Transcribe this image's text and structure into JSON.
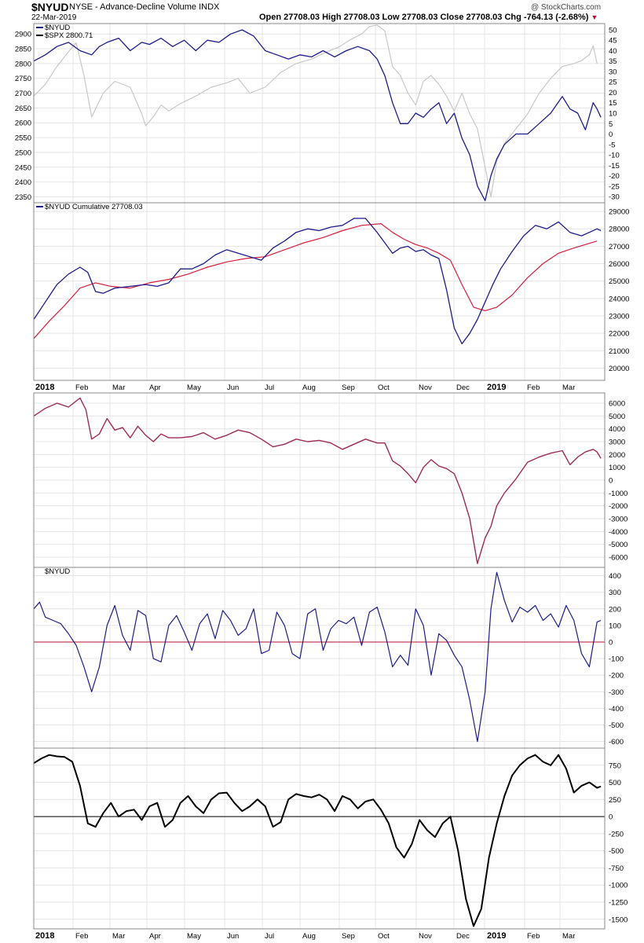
{
  "header": {
    "symbol": "$NYUD",
    "description": "NYSE - Advance-Decline Volume  INDX",
    "date": "22-Mar-2019",
    "quote": "Open 27708.03   High 27708.03   Low 27708.03   Close 27708.03   Chg -764.13 (-2.68%)",
    "chg_marker": "▼",
    "brand": "@ StockCharts.com"
  },
  "colors": {
    "nyud": "#1c1c8a",
    "spx": "#c8c8c8",
    "ma": "#d81e3c",
    "line3": "#9e2a5a",
    "zero": "#b01030",
    "osc": "#000000",
    "grid": "#e4e4e4",
    "border": "#888888"
  },
  "chart_data": [
    {
      "type": "line",
      "legend": [
        {
          "name": "$NYUD",
          "color": "#1c1c8a"
        },
        {
          "name": "$SPX 2800.71",
          "color": "#c8c8c8"
        }
      ],
      "x_ticks": [
        "2018",
        "Feb",
        "Mar",
        "Apr",
        "May",
        "Jun",
        "Jul",
        "Aug",
        "Sep",
        "Oct",
        "Nov",
        "Dec",
        "2019",
        "Feb",
        "Mar"
      ],
      "y_left_ticks": [
        2350,
        2400,
        2450,
        2500,
        2550,
        2600,
        2650,
        2700,
        2750,
        2800,
        2850,
        2900
      ],
      "y_left_range": [
        2330,
        2935
      ],
      "y_right_ticks": [
        -30,
        -25,
        -20,
        -15,
        -10,
        -5,
        0,
        5,
        10,
        15,
        20,
        25,
        30,
        35,
        40,
        45,
        50
      ],
      "y_right_range": [
        -33,
        53
      ],
      "x_range": [
        0,
        14.8
      ],
      "series": [
        {
          "name": "$SPX 2800.71",
          "axis": "left",
          "color": "#c8c8c8",
          "x": [
            0,
            0.3,
            0.6,
            0.9,
            1.1,
            1.3,
            1.5,
            1.8,
            2.1,
            2.5,
            2.8,
            2.9,
            3.1,
            3.3,
            3.5,
            3.8,
            4.2,
            4.6,
            5.0,
            5.3,
            5.6,
            6.0,
            6.4,
            6.8,
            7.2,
            7.6,
            7.9,
            8.2,
            8.5,
            8.7,
            8.9,
            9.1,
            9.3,
            9.5,
            9.7,
            9.9,
            10.1,
            10.3,
            10.5,
            10.7,
            10.9,
            11.1,
            11.3,
            11.5,
            11.7,
            11.85,
            12.0,
            12.2,
            12.5,
            12.8,
            13.1,
            13.4,
            13.7,
            14.0,
            14.2,
            14.4,
            14.5,
            14.6
          ],
          "y": [
            2690,
            2730,
            2790,
            2840,
            2870,
            2760,
            2620,
            2700,
            2740,
            2720,
            2630,
            2590,
            2620,
            2660,
            2640,
            2665,
            2690,
            2720,
            2735,
            2750,
            2700,
            2720,
            2770,
            2800,
            2815,
            2840,
            2855,
            2880,
            2900,
            2925,
            2930,
            2910,
            2790,
            2760,
            2700,
            2660,
            2740,
            2760,
            2730,
            2690,
            2640,
            2700,
            2630,
            2580,
            2450,
            2350,
            2470,
            2530,
            2580,
            2630,
            2700,
            2750,
            2790,
            2800,
            2810,
            2830,
            2860,
            2800
          ]
        },
        {
          "name": "$NYUD",
          "axis": "right",
          "color": "#1c1c8a",
          "x": [
            0,
            0.3,
            0.6,
            0.9,
            1.2,
            1.5,
            1.7,
            1.9,
            2.2,
            2.5,
            2.8,
            3.0,
            3.3,
            3.6,
            3.9,
            4.2,
            4.5,
            4.8,
            5.1,
            5.4,
            5.7,
            6.0,
            6.3,
            6.6,
            6.9,
            7.2,
            7.5,
            7.8,
            8.1,
            8.4,
            8.7,
            8.9,
            9.1,
            9.3,
            9.5,
            9.7,
            9.9,
            10.1,
            10.3,
            10.5,
            10.7,
            10.9,
            11.1,
            11.3,
            11.5,
            11.7,
            11.85,
            12.0,
            12.2,
            12.5,
            12.8,
            13.1,
            13.4,
            13.7,
            13.9,
            14.1,
            14.3,
            14.5,
            14.6,
            14.7
          ],
          "y": [
            35,
            38,
            42,
            44,
            40,
            38,
            42,
            44,
            46,
            40,
            44,
            43,
            46,
            42,
            45,
            40,
            45,
            44,
            48,
            50,
            47,
            40,
            38,
            36,
            38,
            37,
            40,
            37,
            40,
            42,
            40,
            36,
            28,
            15,
            5,
            5,
            10,
            8,
            12,
            15,
            5,
            10,
            -2,
            -10,
            -25,
            -32,
            -20,
            -12,
            -5,
            0,
            0,
            5,
            10,
            18,
            12,
            10,
            2,
            15,
            12,
            8
          ]
        }
      ]
    },
    {
      "type": "line",
      "legend": [
        {
          "name": "$NYUD Cumulative 27708.03",
          "color": "#1c1c8a"
        }
      ],
      "x_ticks": [
        "2018",
        "Feb",
        "Mar",
        "Apr",
        "May",
        "Jun",
        "Jul",
        "Aug",
        "Sep",
        "Oct",
        "Nov",
        "Dec",
        "2019",
        "Feb",
        "Mar"
      ],
      "y_ticks": [
        20000,
        21000,
        22000,
        23000,
        24000,
        25000,
        26000,
        27000,
        28000,
        29000
      ],
      "y_range": [
        19300,
        29500
      ],
      "x_range": [
        0,
        14.8
      ],
      "series": [
        {
          "name": "$NYUD Cumulative",
          "color": "#1c1c8a",
          "x": [
            0,
            0.3,
            0.6,
            0.9,
            1.2,
            1.4,
            1.6,
            1.8,
            2.1,
            2.5,
            2.9,
            3.2,
            3.5,
            3.8,
            4.1,
            4.4,
            4.7,
            5.0,
            5.3,
            5.6,
            5.9,
            6.2,
            6.5,
            6.8,
            7.1,
            7.4,
            7.7,
            8.0,
            8.3,
            8.6,
            8.9,
            9.1,
            9.3,
            9.5,
            9.7,
            9.9,
            10.1,
            10.3,
            10.5,
            10.7,
            10.9,
            11.1,
            11.3,
            11.5,
            11.7,
            11.9,
            12.1,
            12.4,
            12.7,
            13.0,
            13.3,
            13.6,
            13.9,
            14.2,
            14.4,
            14.6,
            14.7
          ],
          "y": [
            22800,
            23800,
            24800,
            25400,
            25800,
            25500,
            24400,
            24300,
            24600,
            24700,
            24800,
            24700,
            24900,
            25700,
            25700,
            26000,
            26500,
            26800,
            26600,
            26400,
            26200,
            26900,
            27300,
            27800,
            28000,
            27900,
            28100,
            28200,
            28600,
            28600,
            27800,
            27200,
            26600,
            26900,
            27000,
            26700,
            26800,
            26500,
            26300,
            24500,
            22300,
            21400,
            22000,
            22800,
            23800,
            24800,
            25700,
            26700,
            27600,
            28200,
            28000,
            28400,
            27800,
            27600,
            27800,
            28000,
            27900
          ]
        },
        {
          "name": "Moving Average",
          "color": "#d81e3c",
          "x": [
            0,
            0.4,
            0.8,
            1.2,
            1.6,
            2.0,
            2.5,
            3.0,
            3.5,
            4.0,
            4.5,
            5.0,
            5.5,
            6.0,
            6.5,
            7.0,
            7.5,
            8.0,
            8.5,
            9.0,
            9.3,
            9.6,
            9.9,
            10.2,
            10.5,
            10.8,
            11.1,
            11.4,
            11.7,
            12.0,
            12.4,
            12.8,
            13.2,
            13.6,
            14.0,
            14.3,
            14.6
          ],
          "y": [
            21700,
            22700,
            23600,
            24600,
            24900,
            24700,
            24600,
            24900,
            25100,
            25400,
            25800,
            26100,
            26300,
            26400,
            26800,
            27200,
            27500,
            27900,
            28200,
            28300,
            27800,
            27400,
            27100,
            26900,
            26600,
            26200,
            24800,
            23500,
            23300,
            23500,
            24200,
            25200,
            26000,
            26600,
            26900,
            27100,
            27300
          ]
        }
      ]
    },
    {
      "type": "line",
      "x_range": [
        0,
        14.8
      ],
      "y_ticks": [
        -6000,
        -5000,
        -4000,
        -3000,
        -2000,
        -1000,
        0,
        1000,
        2000,
        3000,
        4000,
        5000,
        6000
      ],
      "y_range": [
        -6800,
        6800
      ],
      "series": [
        {
          "name": "",
          "color": "#9e2a5a",
          "x": [
            0,
            0.3,
            0.6,
            0.9,
            1.2,
            1.35,
            1.5,
            1.7,
            1.9,
            2.1,
            2.3,
            2.5,
            2.7,
            2.9,
            3.1,
            3.3,
            3.5,
            3.8,
            4.1,
            4.4,
            4.7,
            5.0,
            5.3,
            5.6,
            5.9,
            6.2,
            6.5,
            6.8,
            7.1,
            7.4,
            7.7,
            8.0,
            8.3,
            8.6,
            8.9,
            9.1,
            9.3,
            9.5,
            9.7,
            9.9,
            10.1,
            10.3,
            10.5,
            10.7,
            10.9,
            11.1,
            11.3,
            11.5,
            11.7,
            11.85,
            12.0,
            12.2,
            12.5,
            12.8,
            13.1,
            13.4,
            13.7,
            13.9,
            14.1,
            14.3,
            14.5,
            14.6,
            14.7
          ],
          "y": [
            5000,
            5600,
            6000,
            5700,
            6400,
            5500,
            3200,
            3600,
            4800,
            3900,
            4100,
            3300,
            4200,
            3500,
            3000,
            3600,
            3300,
            3300,
            3400,
            3700,
            3200,
            3500,
            3900,
            3700,
            3200,
            2600,
            2800,
            3200,
            3000,
            3100,
            2900,
            2400,
            2800,
            3200,
            2900,
            2900,
            1500,
            1100,
            500,
            -200,
            1000,
            1600,
            1100,
            900,
            500,
            -1000,
            -3000,
            -6500,
            -4500,
            -3600,
            -2000,
            -1000,
            100,
            1400,
            1800,
            2100,
            2300,
            1200,
            1800,
            2200,
            2400,
            2200,
            1700
          ]
        }
      ]
    },
    {
      "type": "line",
      "legend": [
        {
          "name": "$NYUD",
          "color": "#1c1c8a"
        }
      ],
      "x_range": [
        0,
        14.8
      ],
      "y_ticks": [
        -600,
        -500,
        -400,
        -300,
        -200,
        -100,
        0,
        100,
        200,
        300,
        400
      ],
      "y_range": [
        -640,
        450
      ],
      "reference_line": 0,
      "series": [
        {
          "name": "$NYUD",
          "color": "#1c1c8a",
          "x": [
            0,
            0.15,
            0.3,
            0.5,
            0.7,
            0.9,
            1.1,
            1.3,
            1.5,
            1.7,
            1.9,
            2.1,
            2.3,
            2.5,
            2.7,
            2.9,
            3.1,
            3.3,
            3.5,
            3.7,
            3.9,
            4.1,
            4.3,
            4.5,
            4.7,
            4.9,
            5.1,
            5.3,
            5.5,
            5.7,
            5.9,
            6.1,
            6.3,
            6.5,
            6.7,
            6.9,
            7.1,
            7.3,
            7.5,
            7.7,
            7.9,
            8.1,
            8.3,
            8.5,
            8.7,
            8.9,
            9.1,
            9.3,
            9.5,
            9.7,
            9.9,
            10.1,
            10.3,
            10.5,
            10.7,
            10.9,
            11.1,
            11.3,
            11.5,
            11.7,
            11.85,
            12.0,
            12.2,
            12.4,
            12.6,
            12.8,
            13.0,
            13.2,
            13.4,
            13.6,
            13.8,
            14.0,
            14.2,
            14.4,
            14.6,
            14.7
          ],
          "y": [
            200,
            240,
            150,
            130,
            110,
            50,
            -20,
            -150,
            -300,
            -150,
            100,
            220,
            40,
            -50,
            190,
            160,
            -100,
            -120,
            100,
            160,
            60,
            -50,
            110,
            170,
            20,
            190,
            130,
            40,
            80,
            200,
            -70,
            -50,
            180,
            100,
            -70,
            -100,
            170,
            200,
            -50,
            80,
            130,
            110,
            150,
            -20,
            180,
            210,
            60,
            -150,
            -80,
            -140,
            200,
            100,
            -200,
            50,
            10,
            -80,
            -150,
            -350,
            -600,
            -300,
            200,
            420,
            250,
            120,
            210,
            180,
            220,
            130,
            170,
            90,
            220,
            130,
            -70,
            -150,
            120,
            130
          ]
        }
      ]
    },
    {
      "type": "line",
      "x_range": [
        0,
        14.8
      ],
      "x_ticks": [
        "2018",
        "Feb",
        "Mar",
        "Apr",
        "May",
        "Jun",
        "Jul",
        "Aug",
        "Sep",
        "Oct",
        "Nov",
        "Dec",
        "2019",
        "Feb",
        "Mar"
      ],
      "y_ticks": [
        -1500,
        -1250,
        -1000,
        -750,
        -500,
        -250,
        0,
        250,
        500,
        750
      ],
      "y_range": [
        -1640,
        1000
      ],
      "reference_line": 0,
      "series": [
        {
          "name": "",
          "color": "#000000",
          "x": [
            0,
            0.2,
            0.4,
            0.6,
            0.8,
            1.0,
            1.2,
            1.4,
            1.6,
            1.8,
            2.0,
            2.2,
            2.4,
            2.6,
            2.8,
            3.0,
            3.2,
            3.4,
            3.6,
            3.8,
            4.0,
            4.2,
            4.4,
            4.6,
            4.8,
            5.0,
            5.2,
            5.4,
            5.6,
            5.8,
            6.0,
            6.2,
            6.4,
            6.6,
            6.8,
            7.0,
            7.2,
            7.4,
            7.6,
            7.8,
            8.0,
            8.2,
            8.4,
            8.6,
            8.8,
            9.0,
            9.2,
            9.4,
            9.6,
            9.8,
            10.0,
            10.2,
            10.4,
            10.6,
            10.8,
            11.0,
            11.2,
            11.4,
            11.6,
            11.8,
            12.0,
            12.2,
            12.4,
            12.6,
            12.8,
            13.0,
            13.2,
            13.4,
            13.6,
            13.8,
            14.0,
            14.2,
            14.4,
            14.6,
            14.7
          ],
          "y": [
            780,
            850,
            900,
            880,
            870,
            800,
            450,
            -100,
            -150,
            50,
            200,
            0,
            80,
            100,
            -50,
            150,
            200,
            -150,
            -50,
            200,
            300,
            150,
            50,
            250,
            340,
            350,
            200,
            80,
            150,
            250,
            150,
            -150,
            -80,
            250,
            330,
            300,
            280,
            320,
            250,
            80,
            300,
            250,
            120,
            220,
            250,
            100,
            -100,
            -450,
            -600,
            -400,
            -50,
            -200,
            -300,
            -100,
            0,
            -500,
            -1200,
            -1600,
            -1350,
            -600,
            -100,
            300,
            600,
            750,
            850,
            900,
            800,
            750,
            900,
            700,
            350,
            450,
            500,
            420,
            440
          ]
        }
      ]
    }
  ]
}
